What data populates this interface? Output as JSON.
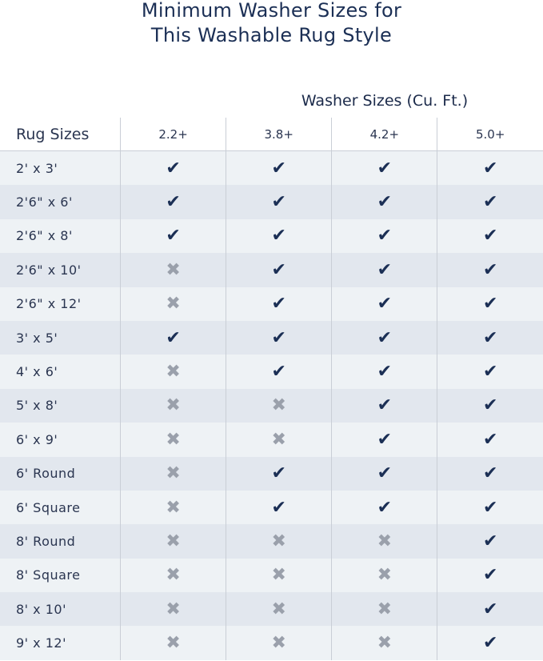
{
  "title_lines": [
    "Minimum Washer Sizes for",
    "This Washable Rug Style"
  ],
  "column_group_label": "Washer Sizes (Cu. Ft.)",
  "row_header_label": "Rug Sizes",
  "washer_sizes": [
    "2.2+",
    "3.8+",
    "4.2+",
    "5.0+"
  ],
  "icons": {
    "yes": "check-icon",
    "no": "x-icon"
  },
  "colors": {
    "check": "#1b2f55",
    "x": "#9aa0ab",
    "row_light": "#eef2f5",
    "row_dark": "#e2e7ee"
  },
  "rows": [
    {
      "rug": "2' x 3'",
      "fits": [
        true,
        true,
        true,
        true
      ]
    },
    {
      "rug": "2'6\" x 6'",
      "fits": [
        true,
        true,
        true,
        true
      ]
    },
    {
      "rug": "2'6\" x 8'",
      "fits": [
        true,
        true,
        true,
        true
      ]
    },
    {
      "rug": "2'6\" x 10'",
      "fits": [
        false,
        true,
        true,
        true
      ]
    },
    {
      "rug": "2'6\" x 12'",
      "fits": [
        false,
        true,
        true,
        true
      ]
    },
    {
      "rug": "3' x 5'",
      "fits": [
        true,
        true,
        true,
        true
      ]
    },
    {
      "rug": "4' x 6'",
      "fits": [
        false,
        true,
        true,
        true
      ]
    },
    {
      "rug": "5' x 8'",
      "fits": [
        false,
        false,
        true,
        true
      ]
    },
    {
      "rug": "6' x 9'",
      "fits": [
        false,
        false,
        true,
        true
      ]
    },
    {
      "rug": "6' Round",
      "fits": [
        false,
        true,
        true,
        true
      ]
    },
    {
      "rug": "6' Square",
      "fits": [
        false,
        true,
        true,
        true
      ]
    },
    {
      "rug": "8' Round",
      "fits": [
        false,
        false,
        false,
        true
      ]
    },
    {
      "rug": "8' Square",
      "fits": [
        false,
        false,
        false,
        true
      ]
    },
    {
      "rug": "8' x 10'",
      "fits": [
        false,
        false,
        false,
        true
      ]
    },
    {
      "rug": "9' x 12'",
      "fits": [
        false,
        false,
        false,
        true
      ]
    }
  ]
}
